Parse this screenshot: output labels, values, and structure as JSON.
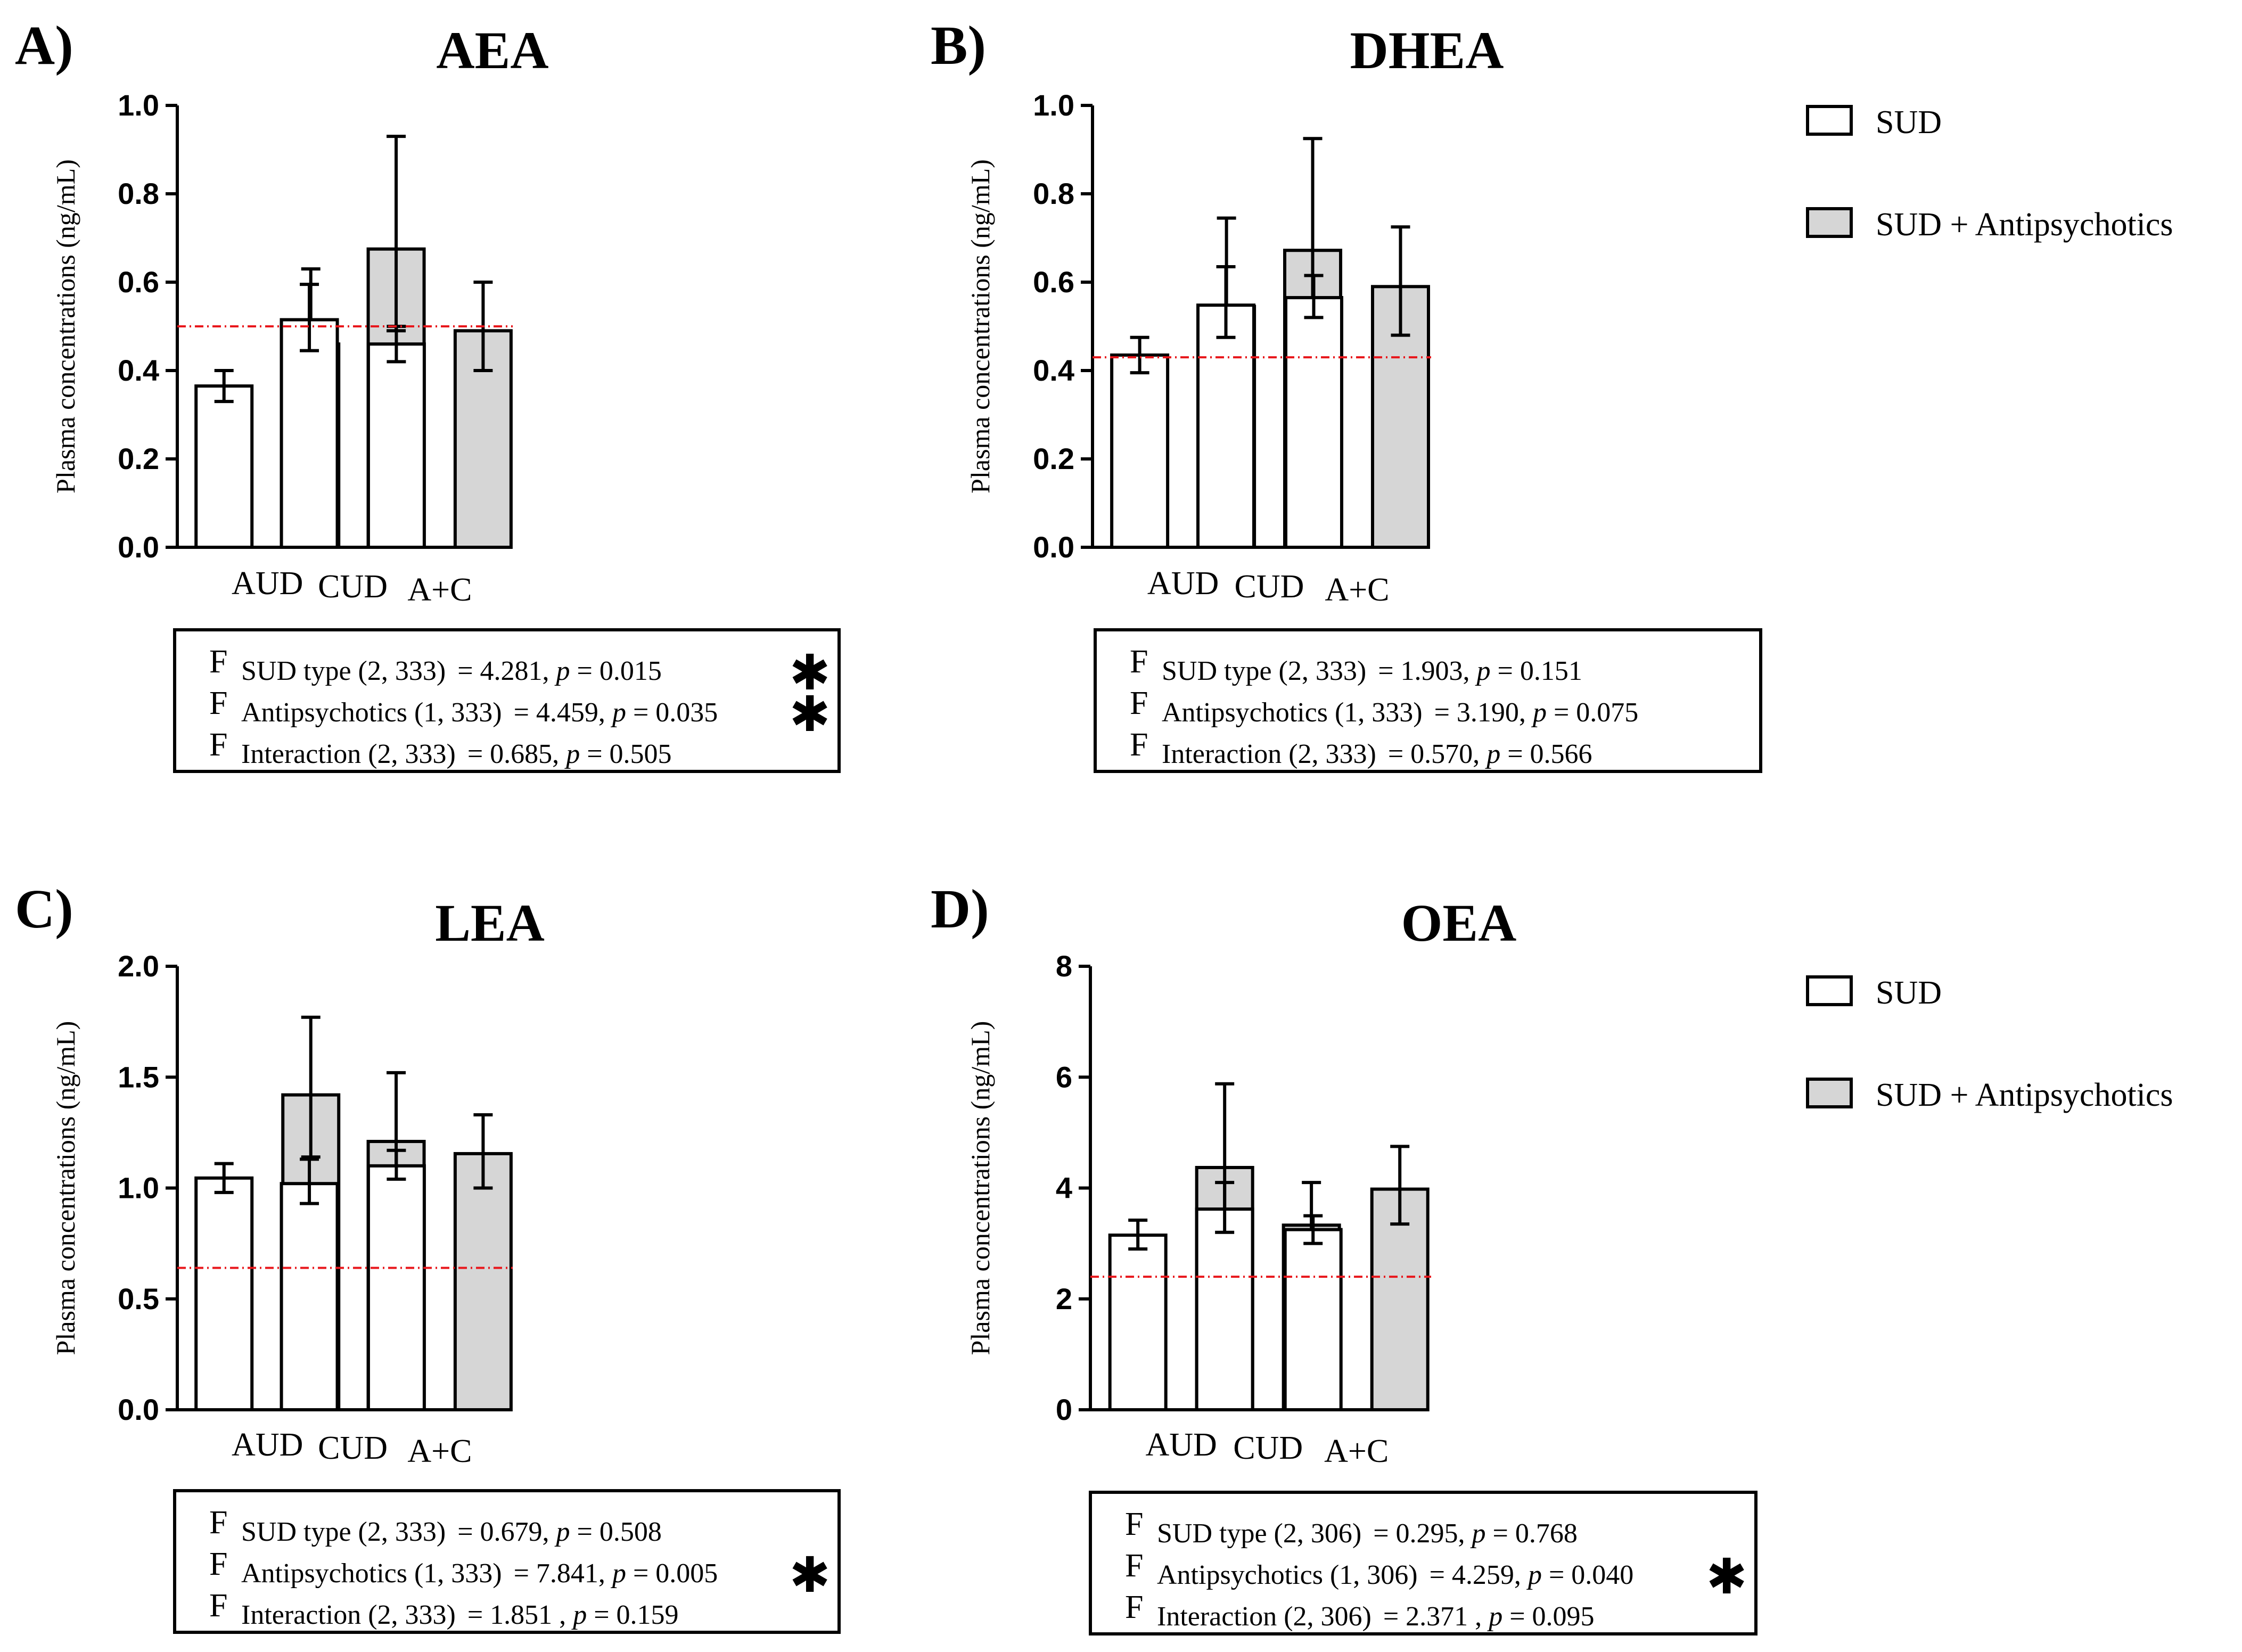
{
  "colors": {
    "sud_fill": "#ffffff",
    "antipsychotic_fill": "#d6d6d6",
    "bar_stroke": "#000000",
    "reference_line": "#e8161b"
  },
  "legend": {
    "series": [
      {
        "name": "SUD",
        "color": "#ffffff"
      },
      {
        "name": "SUD + Antipsychotics",
        "color": "#d6d6d6"
      }
    ]
  },
  "chart_data": [
    {
      "type": "bar",
      "panel": "A)",
      "title": "AEA",
      "ylabel": "Plasma concentrations (ng/mL)",
      "xlabel": "",
      "categories": [
        "AUD",
        "CUD",
        "A+C"
      ],
      "ylim": [
        0,
        1.0
      ],
      "yticks": [
        "0.0",
        "0.2",
        "0.4",
        "0.6",
        "0.8",
        "1.0"
      ],
      "reference_line": 0.5,
      "series": [
        {
          "name": "SUD",
          "values": [
            0.365,
            0.515,
            0.46
          ],
          "err_low": [
            0.33,
            0.445,
            0.42
          ],
          "err_high": [
            0.4,
            0.595,
            0.5
          ]
        },
        {
          "name": "SUD + Antipsychotics",
          "values": [
            0.46,
            0.675,
            0.49
          ],
          "err_low": [
            0.335,
            0.49,
            0.4
          ],
          "err_high": [
            0.63,
            0.93,
            0.6
          ]
        }
      ],
      "stats": [
        {
          "f": "F",
          "label": "SUD type (2, 333)",
          "value": "= 4.281, ",
          "p": "p",
          "pval": " = 0.015",
          "sig": "✱"
        },
        {
          "f": "F",
          "label": "Antipsychotics (1, 333)",
          "value": "= 4.459, ",
          "p": "p",
          "pval": " = 0.035",
          "sig": "✱"
        },
        {
          "f": "F",
          "label": "Interaction (2, 333)",
          "value": "= 0.685, ",
          "p": "p",
          "pval": " = 0.505",
          "sig": ""
        }
      ]
    },
    {
      "type": "bar",
      "panel": "B)",
      "title": "DHEA",
      "ylabel": "Plasma concentrations (ng/mL)",
      "xlabel": "",
      "categories": [
        "AUD",
        "CUD",
        "A+C"
      ],
      "ylim": [
        0,
        1.0
      ],
      "yticks": [
        "0.0",
        "0.2",
        "0.4",
        "0.6",
        "0.8",
        "1.0"
      ],
      "reference_line": 0.43,
      "series": [
        {
          "name": "SUD",
          "values": [
            0.435,
            0.548,
            0.565
          ],
          "err_low": [
            0.395,
            0.475,
            0.52
          ],
          "err_high": [
            0.475,
            0.635,
            0.615
          ]
        },
        {
          "name": "SUD + Antipsychotics",
          "values": [
            0.545,
            0.672,
            0.59
          ],
          "err_low": [
            0.4,
            0.49,
            0.48
          ],
          "err_high": [
            0.745,
            0.925,
            0.725
          ]
        }
      ],
      "stats": [
        {
          "f": "F",
          "label": "SUD type (2, 333)",
          "value": "= 1.903, ",
          "p": "p",
          "pval": " = 0.151",
          "sig": ""
        },
        {
          "f": "F",
          "label": "Antipsychotics (1, 333)",
          "value": "= 3.190, ",
          "p": "p",
          "pval": " = 0.075",
          "sig": ""
        },
        {
          "f": "F",
          "label": "Interaction (2, 333)",
          "value": "= 0.570, ",
          "p": "p",
          "pval": " = 0.566",
          "sig": ""
        }
      ]
    },
    {
      "type": "bar",
      "panel": "C)",
      "title": "LEA",
      "ylabel": "Plasma concentrations (ng/mL)",
      "xlabel": "",
      "categories": [
        "AUD",
        "CUD",
        "A+C"
      ],
      "ylim": [
        0,
        2.0
      ],
      "yticks": [
        "0.0",
        "0.5",
        "1.0",
        "1.5",
        "2.0"
      ],
      "reference_line": 0.64,
      "series": [
        {
          "name": "SUD",
          "values": [
            1.045,
            1.02,
            1.1
          ],
          "err_low": [
            0.98,
            0.93,
            1.04
          ],
          "err_high": [
            1.11,
            1.13,
            1.17
          ]
        },
        {
          "name": "SUD + Antipsychotics",
          "values": [
            1.42,
            1.21,
            1.155
          ],
          "err_low": [
            1.14,
            0.78,
            1.0
          ],
          "err_high": [
            1.77,
            1.52,
            1.33
          ]
        }
      ],
      "stats": [
        {
          "f": "F",
          "label": "SUD type (2, 333)",
          "value": "= 0.679, ",
          "p": "p",
          "pval": " = 0.508",
          "sig": ""
        },
        {
          "f": "F",
          "label": "Antipsychotics (1, 333)",
          "value": "= 7.841, ",
          "p": "p",
          "pval": " = 0.005",
          "sig": "✱"
        },
        {
          "f": "F",
          "label": "Interaction (2, 333)",
          "value": "= 1.851  , ",
          "p": "p",
          "pval": " = 0.159",
          "sig": ""
        }
      ]
    },
    {
      "type": "bar",
      "panel": "D)",
      "title": "OEA",
      "ylabel": "Plasma concentrations (ng/mL)",
      "xlabel": "",
      "categories": [
        "AUD",
        "CUD",
        "A+C"
      ],
      "ylim": [
        0,
        8
      ],
      "yticks": [
        "0",
        "2",
        "4",
        "6",
        "8"
      ],
      "reference_line": 2.4,
      "series": [
        {
          "name": "SUD",
          "values": [
            3.15,
            3.62,
            3.25
          ],
          "err_low": [
            2.9,
            3.2,
            3.0
          ],
          "err_high": [
            3.42,
            4.1,
            3.5
          ]
        },
        {
          "name": "SUD + Antipsychotics",
          "values": [
            4.37,
            3.33,
            3.98
          ],
          "err_low": [
            3.42,
            2.6,
            3.35
          ],
          "err_high": [
            5.88,
            4.1,
            4.75
          ]
        }
      ],
      "stats": [
        {
          "f": "F",
          "label": "SUD type (2, 306)",
          "value": "= 0.295, ",
          "p": "p",
          "pval": " = 0.768",
          "sig": ""
        },
        {
          "f": "F",
          "label": "Antipsychotics (1, 306)",
          "value": "= 4.259, ",
          "p": "p",
          "pval": " = 0.040",
          "sig": "✱"
        },
        {
          "f": "F",
          "label": "Interaction (2, 306)",
          "value": "= 2.371  , ",
          "p": "p",
          "pval": " = 0.095",
          "sig": ""
        }
      ]
    }
  ]
}
